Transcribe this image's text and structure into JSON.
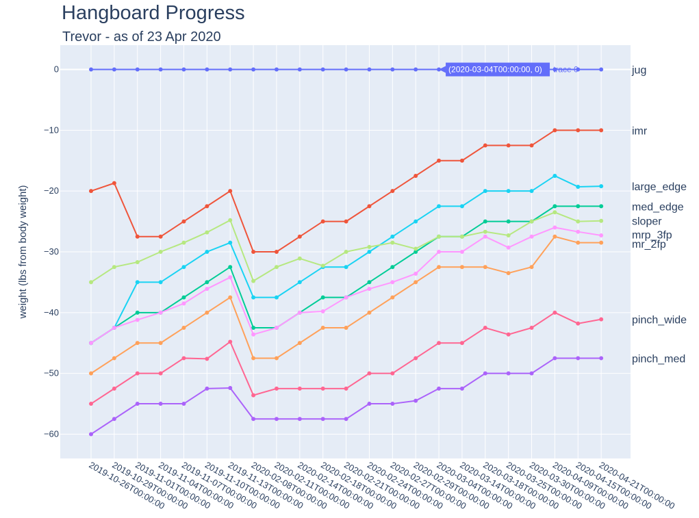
{
  "chart_data": {
    "type": "line",
    "title": "Hangboard Progress",
    "subtitle": "Trevor - as of 23 Apr 2020",
    "ylabel": "weight (lbs from body weight)",
    "ylim": [
      -64,
      4
    ],
    "yticks": [
      0,
      -10,
      -20,
      -30,
      -40,
      -50,
      -60
    ],
    "ytick_labels": [
      "0",
      "−10",
      "−20",
      "−30",
      "−40",
      "−50",
      "−60"
    ],
    "grid": true,
    "x": [
      "2019-10-26T00:00:00",
      "2019-10-29T00:00:00",
      "2019-11-01T00:00:00",
      "2019-11-04T00:00:00",
      "2019-11-07T00:00:00",
      "2019-11-10T00:00:00",
      "2019-11-13T00:00:00",
      "2020-02-08T00:00:00",
      "2020-02-11T00:00:00",
      "2020-02-14T00:00:00",
      "2020-02-18T00:00:00",
      "2020-02-21T00:00:00",
      "2020-02-24T00:00:00",
      "2020-02-27T00:00:00",
      "2020-02-29T00:00:00",
      "2020-03-04T00:00:00",
      "2020-03-14T00:00:00",
      "2020-03-18T00:00:00",
      "2020-03-25T00:00:00",
      "2020-03-30T00:00:00",
      "2020-04-09T00:00:00",
      "2020-04-15T00:00:00",
      "2020-04-21T00:00:00"
    ],
    "series": [
      {
        "name": "jug",
        "color": "#636efa",
        "values": [
          0,
          0,
          0,
          0,
          0,
          0,
          0,
          0,
          0,
          0,
          0,
          0,
          0,
          0,
          0,
          0,
          0,
          0,
          0,
          0,
          0,
          0,
          0
        ]
      },
      {
        "name": "imr",
        "color": "#ef553b",
        "values": [
          -20,
          -18.7,
          -27.5,
          -27.5,
          -25,
          -22.5,
          -20,
          -30,
          -30,
          -27.5,
          -25,
          -25,
          -22.5,
          -20,
          -17.5,
          -15,
          -15,
          -12.5,
          -12.5,
          -12.5,
          -10,
          -10,
          -10
        ]
      },
      {
        "name": "large_edge",
        "color": "#19d3f3",
        "values": [
          -45,
          -42.5,
          -35,
          -35,
          -32.5,
          -30,
          -28.5,
          -37.5,
          -37.5,
          -35,
          -32.5,
          -32.5,
          -30,
          -27.5,
          -25,
          -22.5,
          -22.5,
          -20,
          -20,
          -20,
          -17.5,
          -19.3,
          -19.2
        ]
      },
      {
        "name": "med_edge",
        "color": "#00cc96",
        "values": [
          -45,
          -42.5,
          -40,
          -40,
          -37.5,
          -35,
          -32.5,
          -42.5,
          -42.5,
          -40,
          -37.5,
          -37.5,
          -35,
          -32.5,
          -30,
          -27.5,
          -27.5,
          -25,
          -25,
          -25,
          -22.5,
          -22.5,
          -22.5
        ]
      },
      {
        "name": "sloper",
        "color": "#b6e880",
        "values": [
          -35,
          -32.5,
          -31.7,
          -30,
          -28.5,
          -26.8,
          -24.8,
          -34.8,
          -32.5,
          -31.1,
          -32.3,
          -30,
          -29.2,
          -28.5,
          -29.5,
          -27.5,
          -27.5,
          -26.7,
          -27.3,
          -25,
          -23.5,
          -25,
          -24.9
        ]
      },
      {
        "name": "mrp_3fp",
        "color": "#ff97ff",
        "values": [
          -45,
          -42.5,
          -41.2,
          -40,
          -38.5,
          -36.1,
          -34.2,
          -43.6,
          -42.5,
          -40,
          -39.8,
          -37.5,
          -36.1,
          -35,
          -33.6,
          -30,
          -30,
          -27.5,
          -29.3,
          -27.5,
          -26,
          -26.7,
          -27.3
        ]
      },
      {
        "name": "mr_2fp",
        "color": "#ffa15a",
        "values": [
          -50,
          -47.5,
          -45,
          -45,
          -42.5,
          -40,
          -37.5,
          -47.5,
          -47.5,
          -45,
          -42.5,
          -42.5,
          -40,
          -37.5,
          -35,
          -32.5,
          -32.5,
          -32.5,
          -33.5,
          -32.5,
          -27.5,
          -28.5,
          -28.5
        ]
      },
      {
        "name": "pinch_wide",
        "color": "#ff6692",
        "values": [
          -55,
          -52.5,
          -50,
          -50,
          -47.5,
          -47.6,
          -44.8,
          -53.6,
          -52.5,
          -52.5,
          -52.5,
          -52.5,
          -50,
          -50,
          -47.5,
          -45,
          -45,
          -42.5,
          -43.6,
          -42.5,
          -40,
          -41.8,
          -41.1
        ]
      },
      {
        "name": "pinch_med",
        "color": "#ab63fa",
        "values": [
          -60,
          -57.5,
          -55,
          -55,
          -55,
          -52.5,
          -52.4,
          -57.5,
          -57.5,
          -57.5,
          -57.5,
          -57.5,
          -55,
          -55,
          -54.5,
          -52.5,
          -52.5,
          -50,
          -50,
          -50,
          -47.5,
          -47.5,
          -47.5
        ]
      }
    ],
    "hover": {
      "text": "(2020-03-04T00:00:00, 0)",
      "trace": "trace 0",
      "point_index": 15,
      "series": "jug",
      "color": "#636efa"
    }
  }
}
